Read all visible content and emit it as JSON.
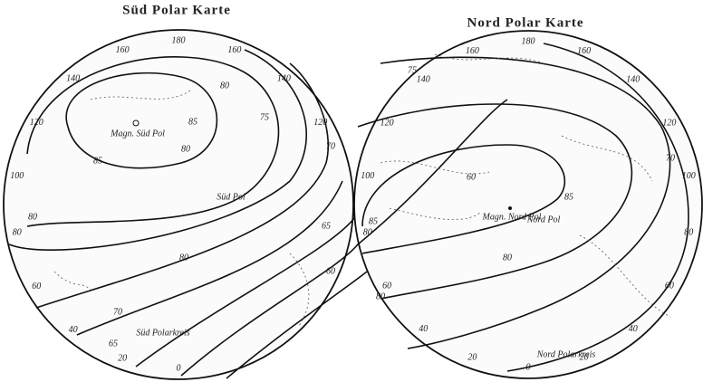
{
  "maps": [
    {
      "title": "Süd Polar Karte",
      "magnetic_pole": "Magn. Süd Pol",
      "pole": "Süd Pol",
      "polar_circle": "Süd Polarkreis",
      "edge_labels": [
        "0",
        "20",
        "40",
        "60",
        "80",
        "100",
        "120",
        "140",
        "160",
        "180",
        "160",
        "140",
        "120"
      ],
      "contour_labels": [
        "85",
        "80",
        "85",
        "80",
        "75",
        "70",
        "65",
        "60",
        "80",
        "80",
        "70",
        "65"
      ]
    },
    {
      "title": "Nord Polar Karte",
      "magnetic_pole": "Magn. Nord Pol",
      "pole": "Nord Pol",
      "polar_circle": "Nord Polarkreis",
      "edge_labels": [
        "0",
        "20",
        "40",
        "60",
        "80",
        "100",
        "120",
        "140",
        "160",
        "180",
        "160",
        "140",
        "120",
        "100",
        "80",
        "60",
        "40",
        "20"
      ],
      "contour_labels": [
        "85",
        "60",
        "85",
        "75",
        "80",
        "80",
        "70"
      ]
    }
  ]
}
